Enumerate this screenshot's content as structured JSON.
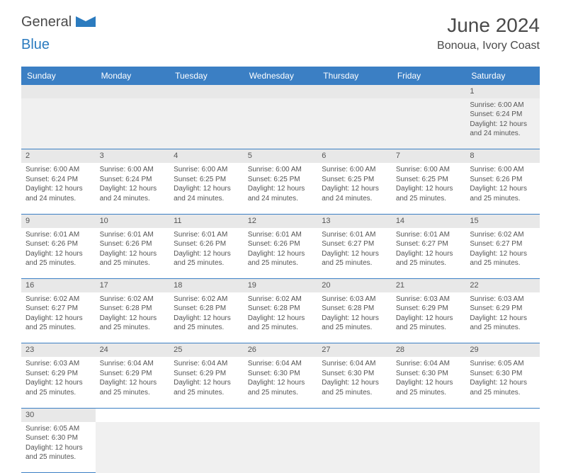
{
  "brand": {
    "part1": "General",
    "part2": "Blue"
  },
  "title": "June 2024",
  "location": "Bonoua, Ivory Coast",
  "colors": {
    "header_bg": "#3b7fc4",
    "header_text": "#ffffff",
    "daynum_bg": "#e8e8e8",
    "border": "#3b7fc4",
    "brand_gray": "#4a4a4a",
    "brand_blue": "#2b7bbf"
  },
  "weekdays": [
    "Sunday",
    "Monday",
    "Tuesday",
    "Wednesday",
    "Thursday",
    "Friday",
    "Saturday"
  ],
  "weeks": [
    [
      null,
      null,
      null,
      null,
      null,
      null,
      {
        "n": "1",
        "sr": "6:00 AM",
        "ss": "6:24 PM",
        "dl": "12 hours and 24 minutes."
      }
    ],
    [
      {
        "n": "2",
        "sr": "6:00 AM",
        "ss": "6:24 PM",
        "dl": "12 hours and 24 minutes."
      },
      {
        "n": "3",
        "sr": "6:00 AM",
        "ss": "6:24 PM",
        "dl": "12 hours and 24 minutes."
      },
      {
        "n": "4",
        "sr": "6:00 AM",
        "ss": "6:25 PM",
        "dl": "12 hours and 24 minutes."
      },
      {
        "n": "5",
        "sr": "6:00 AM",
        "ss": "6:25 PM",
        "dl": "12 hours and 24 minutes."
      },
      {
        "n": "6",
        "sr": "6:00 AM",
        "ss": "6:25 PM",
        "dl": "12 hours and 24 minutes."
      },
      {
        "n": "7",
        "sr": "6:00 AM",
        "ss": "6:25 PM",
        "dl": "12 hours and 25 minutes."
      },
      {
        "n": "8",
        "sr": "6:00 AM",
        "ss": "6:26 PM",
        "dl": "12 hours and 25 minutes."
      }
    ],
    [
      {
        "n": "9",
        "sr": "6:01 AM",
        "ss": "6:26 PM",
        "dl": "12 hours and 25 minutes."
      },
      {
        "n": "10",
        "sr": "6:01 AM",
        "ss": "6:26 PM",
        "dl": "12 hours and 25 minutes."
      },
      {
        "n": "11",
        "sr": "6:01 AM",
        "ss": "6:26 PM",
        "dl": "12 hours and 25 minutes."
      },
      {
        "n": "12",
        "sr": "6:01 AM",
        "ss": "6:26 PM",
        "dl": "12 hours and 25 minutes."
      },
      {
        "n": "13",
        "sr": "6:01 AM",
        "ss": "6:27 PM",
        "dl": "12 hours and 25 minutes."
      },
      {
        "n": "14",
        "sr": "6:01 AM",
        "ss": "6:27 PM",
        "dl": "12 hours and 25 minutes."
      },
      {
        "n": "15",
        "sr": "6:02 AM",
        "ss": "6:27 PM",
        "dl": "12 hours and 25 minutes."
      }
    ],
    [
      {
        "n": "16",
        "sr": "6:02 AM",
        "ss": "6:27 PM",
        "dl": "12 hours and 25 minutes."
      },
      {
        "n": "17",
        "sr": "6:02 AM",
        "ss": "6:28 PM",
        "dl": "12 hours and 25 minutes."
      },
      {
        "n": "18",
        "sr": "6:02 AM",
        "ss": "6:28 PM",
        "dl": "12 hours and 25 minutes."
      },
      {
        "n": "19",
        "sr": "6:02 AM",
        "ss": "6:28 PM",
        "dl": "12 hours and 25 minutes."
      },
      {
        "n": "20",
        "sr": "6:03 AM",
        "ss": "6:28 PM",
        "dl": "12 hours and 25 minutes."
      },
      {
        "n": "21",
        "sr": "6:03 AM",
        "ss": "6:29 PM",
        "dl": "12 hours and 25 minutes."
      },
      {
        "n": "22",
        "sr": "6:03 AM",
        "ss": "6:29 PM",
        "dl": "12 hours and 25 minutes."
      }
    ],
    [
      {
        "n": "23",
        "sr": "6:03 AM",
        "ss": "6:29 PM",
        "dl": "12 hours and 25 minutes."
      },
      {
        "n": "24",
        "sr": "6:04 AM",
        "ss": "6:29 PM",
        "dl": "12 hours and 25 minutes."
      },
      {
        "n": "25",
        "sr": "6:04 AM",
        "ss": "6:29 PM",
        "dl": "12 hours and 25 minutes."
      },
      {
        "n": "26",
        "sr": "6:04 AM",
        "ss": "6:30 PM",
        "dl": "12 hours and 25 minutes."
      },
      {
        "n": "27",
        "sr": "6:04 AM",
        "ss": "6:30 PM",
        "dl": "12 hours and 25 minutes."
      },
      {
        "n": "28",
        "sr": "6:04 AM",
        "ss": "6:30 PM",
        "dl": "12 hours and 25 minutes."
      },
      {
        "n": "29",
        "sr": "6:05 AM",
        "ss": "6:30 PM",
        "dl": "12 hours and 25 minutes."
      }
    ],
    [
      {
        "n": "30",
        "sr": "6:05 AM",
        "ss": "6:30 PM",
        "dl": "12 hours and 25 minutes."
      },
      null,
      null,
      null,
      null,
      null,
      null
    ]
  ],
  "labels": {
    "sunrise": "Sunrise:",
    "sunset": "Sunset:",
    "daylight": "Daylight:"
  }
}
